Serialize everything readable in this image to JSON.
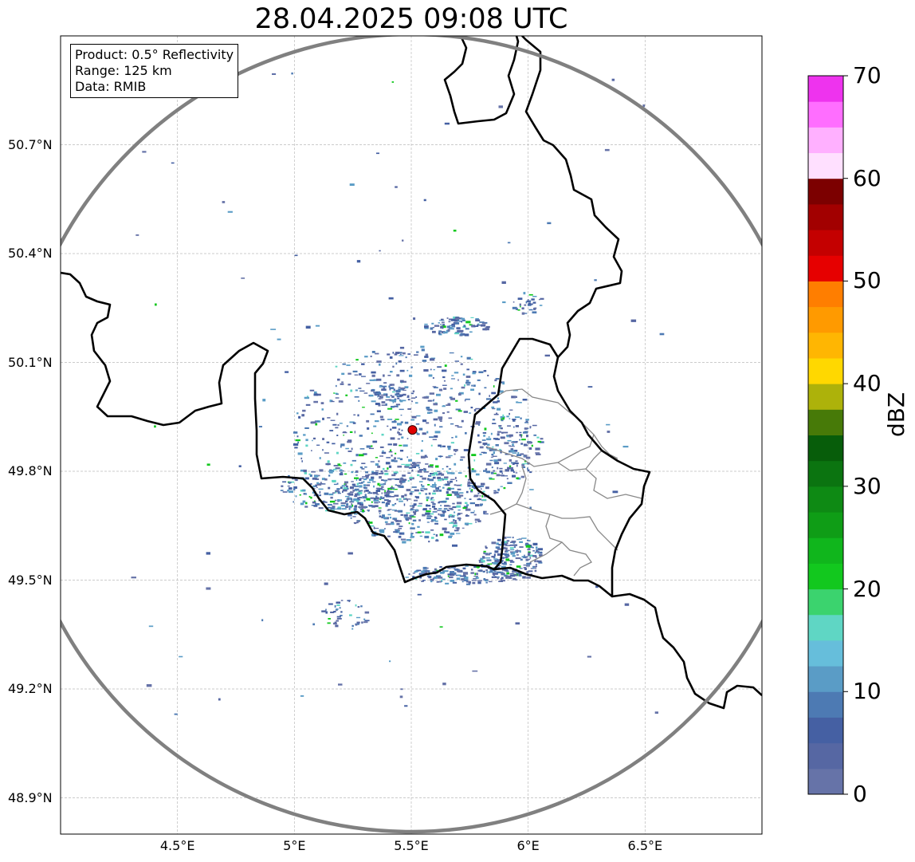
{
  "title": "28.04.2025 09:08 UTC",
  "info": {
    "product": "Product: 0.5° Reflectivity",
    "range": "Range: 125 km",
    "data": "Data: RMIB"
  },
  "map": {
    "lon_range": [
      4.0,
      7.0
    ],
    "lat_range": [
      48.8,
      51.0
    ],
    "radar_site": {
      "lon": 5.505,
      "lat": 49.914,
      "color": "#e00000"
    },
    "range_ring_color": "#808080",
    "border_color": "#000000",
    "lon_ticks": [
      {
        "value": 4.5,
        "label": "4.5°E"
      },
      {
        "value": 5.0,
        "label": "5°E"
      },
      {
        "value": 5.5,
        "label": "5.5°E"
      },
      {
        "value": 6.0,
        "label": "6°E"
      },
      {
        "value": 6.5,
        "label": "6.5°E"
      }
    ],
    "lat_ticks": [
      {
        "value": 48.9,
        "label": "48.9°N"
      },
      {
        "value": 49.2,
        "label": "49.2°N"
      },
      {
        "value": 49.5,
        "label": "49.5°N"
      },
      {
        "value": 49.8,
        "label": "49.8°N"
      },
      {
        "value": 50.1,
        "label": "50.1°N"
      },
      {
        "value": 50.4,
        "label": "50.4°N"
      },
      {
        "value": 50.7,
        "label": "50.7°N"
      }
    ]
  },
  "colorbar": {
    "title": "dBZ",
    "min": 0,
    "max": 70,
    "ticks": [
      {
        "value": 0,
        "label": "0"
      },
      {
        "value": 10,
        "label": "10"
      },
      {
        "value": 20,
        "label": "20"
      },
      {
        "value": 30,
        "label": "30"
      },
      {
        "value": 40,
        "label": "40"
      },
      {
        "value": 50,
        "label": "50"
      },
      {
        "value": 60,
        "label": "60"
      },
      {
        "value": 70,
        "label": "70"
      }
    ],
    "colors": [
      "#6673a8",
      "#5667a3",
      "#4560a3",
      "#4d7ab3",
      "#5a9cc6",
      "#66bedb",
      "#5fd6c4",
      "#3bd36e",
      "#12c81e",
      "#10b61c",
      "#0f9d16",
      "#0e8a14",
      "#0b7410",
      "#075d0a",
      "#477a08",
      "#adb20a",
      "#ffd800",
      "#ffb602",
      "#ff9a00",
      "#ff7e00",
      "#e60000",
      "#c40000",
      "#a20000",
      "#7c0000",
      "#ffe0ff",
      "#ffb0ff",
      "#ff6eff",
      "#ee33ee"
    ]
  }
}
